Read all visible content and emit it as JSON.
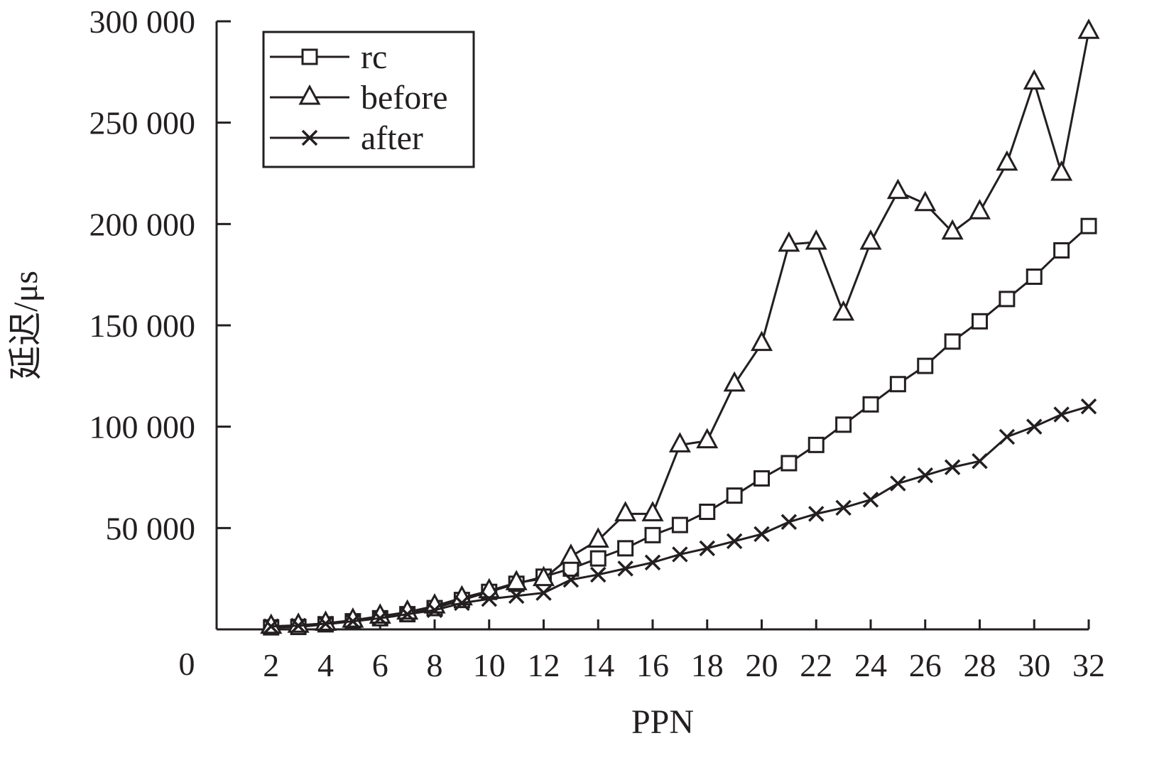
{
  "chart_data": {
    "type": "line",
    "title": "",
    "xlabel": "PPN",
    "ylabel": "延迟/μs",
    "origin_label": "0",
    "x_ticks": [
      "2",
      "4",
      "6",
      "8",
      "10",
      "12",
      "14",
      "16",
      "18",
      "20",
      "22",
      "24",
      "26",
      "28",
      "30",
      "32"
    ],
    "y_ticks": [
      "50 000",
      "100 000",
      "150 000",
      "200 000",
      "250 000",
      "300 000"
    ],
    "xlim": [
      0,
      32
    ],
    "ylim": [
      0,
      300000
    ],
    "grid": false,
    "legend_position": "top-left",
    "x": [
      2,
      3,
      4,
      5,
      6,
      7,
      8,
      9,
      10,
      11,
      12,
      13,
      14,
      15,
      16,
      17,
      18,
      19,
      20,
      21,
      22,
      23,
      24,
      25,
      26,
      27,
      28,
      29,
      30,
      31,
      32
    ],
    "series": [
      {
        "name": "rc",
        "marker": "square",
        "values": [
          1000,
          1200,
          2500,
          4000,
          5500,
          7500,
          10500,
          14500,
          18500,
          22500,
          26000,
          30000,
          35000,
          40000,
          46500,
          51500,
          58000,
          66000,
          74500,
          82000,
          91000,
          101000,
          111000,
          121000,
          130000,
          142000,
          152000,
          163000,
          174000,
          187000,
          199000
        ]
      },
      {
        "name": "before",
        "marker": "triangle",
        "values": [
          1500,
          2000,
          3000,
          4500,
          6500,
          8500,
          11500,
          15500,
          19000,
          23000,
          25000,
          36000,
          44000,
          57000,
          57000,
          91000,
          93000,
          121000,
          141000,
          190000,
          191000,
          156000,
          191000,
          216000,
          210000,
          196000,
          206000,
          230000,
          270000,
          225000,
          295000
        ]
      },
      {
        "name": "after",
        "marker": "x",
        "values": [
          1500,
          1800,
          2800,
          4000,
          5500,
          7500,
          9500,
          13000,
          15000,
          16500,
          18000,
          24500,
          27000,
          30000,
          33000,
          37000,
          40000,
          43500,
          47000,
          53000,
          57000,
          60000,
          64000,
          72000,
          76000,
          80000,
          83000,
          95000,
          100000,
          106000,
          110000
        ]
      }
    ]
  }
}
